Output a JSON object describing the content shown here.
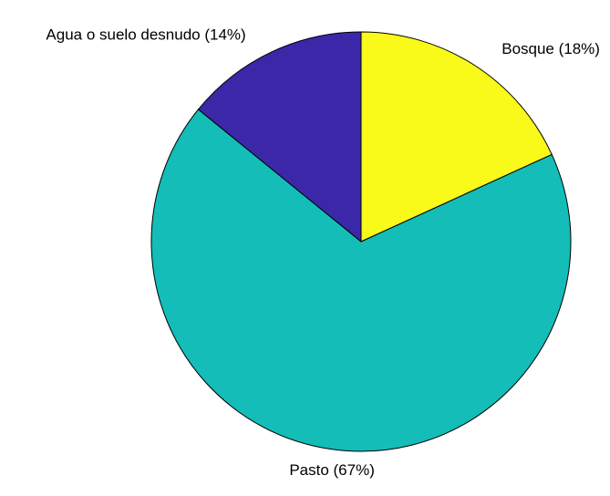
{
  "chart_data": {
    "type": "pie",
    "title": "",
    "start": "top",
    "direction": "clockwise",
    "slices": [
      {
        "label": "Bosque (18%)",
        "category": "Bosque",
        "value": 18,
        "color": "#f9f91a"
      },
      {
        "label": "Pasto (67%)",
        "category": "Pasto",
        "value": 67,
        "color": "#14bdb7"
      },
      {
        "label": "Agua o suelo desnudo (14%)",
        "category": "Agua o suelo desnudo",
        "value": 14,
        "color": "#3b27a8"
      }
    ]
  }
}
